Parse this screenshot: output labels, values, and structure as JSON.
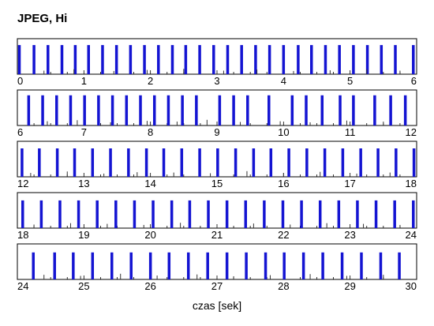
{
  "chart_data": {
    "type": "bar",
    "title": "JPEG, Hi",
    "xlabel": "czas [sek]",
    "ylabel": "",
    "grid": false,
    "legend": "none",
    "xlim": [
      0,
      30
    ],
    "colors": {
      "frame": "#1414d2",
      "minor": "#333333",
      "axis": "#000000"
    },
    "series": [
      {
        "name": "",
        "kind": "frame",
        "x": [
          0.03,
          0.25,
          0.46,
          0.67,
          0.87,
          1.07,
          1.28,
          1.49,
          1.7,
          1.91,
          2.12,
          2.33,
          2.53,
          2.74,
          2.95,
          3.16,
          3.37,
          3.58,
          3.79,
          4.0,
          4.22,
          4.42,
          4.63,
          4.84,
          5.05,
          5.26,
          5.47,
          5.68,
          5.95,
          6.17,
          6.38,
          6.59,
          6.8,
          7.01,
          7.22,
          7.43,
          7.64,
          7.85,
          8.06,
          8.27,
          8.48,
          8.69,
          9.04,
          9.25,
          9.46,
          9.78,
          10.13,
          10.34,
          10.58,
          10.85,
          11.05,
          11.37,
          11.61,
          11.83,
          12.07,
          12.33,
          12.6,
          12.86,
          13.13,
          13.4,
          13.67,
          13.94,
          14.2,
          14.47,
          14.74,
          15.01,
          15.28,
          15.55,
          15.81,
          16.08,
          16.35,
          16.62,
          16.89,
          17.16,
          17.42,
          17.69,
          17.96,
          18.08,
          18.36,
          18.64,
          18.92,
          19.2,
          19.48,
          19.76,
          20.04,
          20.32,
          20.59,
          20.87,
          21.15,
          21.43,
          21.71,
          21.99,
          22.27,
          22.55,
          22.83,
          23.11,
          23.39,
          23.67,
          23.95,
          24.24,
          24.56,
          24.84,
          25.13,
          25.42,
          25.71,
          26.0,
          26.28,
          26.57,
          26.86,
          27.15,
          27.44,
          27.73,
          28.01,
          28.3,
          28.59,
          28.88,
          29.17,
          29.46,
          29.74
        ],
        "values": [
          0.82,
          0.82,
          0.82,
          0.82,
          0.82,
          0.82,
          0.82,
          0.82,
          0.82,
          0.82,
          0.82,
          0.82,
          0.82,
          0.82,
          0.82,
          0.82,
          0.82,
          0.82,
          0.82,
          0.82,
          0.82,
          0.82,
          0.82,
          0.82,
          0.82,
          0.82,
          0.82,
          0.82,
          0.82,
          0.85,
          0.85,
          0.85,
          0.85,
          0.85,
          0.85,
          0.85,
          0.85,
          0.85,
          0.85,
          0.85,
          0.85,
          0.85,
          0.85,
          0.85,
          0.85,
          0.85,
          0.85,
          0.85,
          0.85,
          0.85,
          0.85,
          0.85,
          0.85,
          0.85,
          0.8,
          0.8,
          0.8,
          0.8,
          0.8,
          0.8,
          0.8,
          0.8,
          0.8,
          0.8,
          0.8,
          0.8,
          0.8,
          0.8,
          0.8,
          0.8,
          0.8,
          0.8,
          0.8,
          0.8,
          0.8,
          0.8,
          0.8,
          0.78,
          0.78,
          0.78,
          0.78,
          0.78,
          0.78,
          0.78,
          0.78,
          0.78,
          0.78,
          0.78,
          0.78,
          0.78,
          0.78,
          0.78,
          0.78,
          0.78,
          0.78,
          0.78,
          0.78,
          0.78,
          0.78,
          0.76,
          0.76,
          0.76,
          0.76,
          0.76,
          0.76,
          0.76,
          0.76,
          0.76,
          0.76,
          0.76,
          0.76,
          0.76,
          0.76,
          0.76,
          0.76,
          0.76,
          0.76,
          0.76,
          0.76
        ]
      },
      {
        "name": "",
        "kind": "minor",
        "x": [
          0.4,
          0.85,
          1.45,
          1.95,
          2.5,
          3.1,
          3.6,
          4.15,
          4.7,
          5.25,
          5.75,
          6.45,
          6.9,
          7.4,
          7.95,
          8.4,
          8.85,
          9.35,
          9.95,
          10.4,
          10.95,
          11.5,
          12.2,
          12.75,
          13.3,
          13.8,
          14.35,
          14.9,
          15.45,
          16.0,
          16.55,
          17.1,
          17.6,
          18.25,
          18.8,
          19.35,
          19.9,
          20.45,
          21.0,
          21.55,
          22.1,
          22.65,
          23.2,
          23.75,
          24.4,
          24.95,
          25.55,
          26.1,
          26.7,
          27.25,
          27.8,
          28.4,
          28.95,
          29.5
        ],
        "values": [
          0.1,
          0.14,
          0.09,
          0.12,
          0.15,
          0.1,
          0.13,
          0.09,
          0.11,
          0.14,
          0.1,
          0.12,
          0.15,
          0.09,
          0.13,
          0.11,
          0.16,
          0.1,
          0.12,
          0.09,
          0.14,
          0.11,
          0.11,
          0.15,
          0.09,
          0.13,
          0.12,
          0.1,
          0.16,
          0.11,
          0.14,
          0.09,
          0.12,
          0.1,
          0.14,
          0.12,
          0.09,
          0.15,
          0.11,
          0.13,
          0.1,
          0.14,
          0.12,
          0.09,
          0.13,
          0.1,
          0.16,
          0.11,
          0.14,
          0.09,
          0.12,
          0.15,
          0.1,
          0.13
        ]
      }
    ],
    "rows": [
      {
        "range": [
          0,
          6
        ],
        "tick_labels": [
          "0",
          "1",
          "2",
          "3",
          "4",
          "5",
          "6"
        ]
      },
      {
        "range": [
          6,
          12
        ],
        "tick_labels": [
          "6",
          "7",
          "8",
          "9",
          "10",
          "11",
          "12"
        ]
      },
      {
        "range": [
          12,
          18
        ],
        "tick_labels": [
          "12",
          "13",
          "14",
          "15",
          "16",
          "17",
          "18"
        ]
      },
      {
        "range": [
          18,
          24
        ],
        "tick_labels": [
          "18",
          "19",
          "20",
          "21",
          "22",
          "23",
          "24"
        ]
      },
      {
        "range": [
          24,
          30
        ],
        "tick_labels": [
          "24",
          "25",
          "26",
          "27",
          "28",
          "29",
          "30"
        ]
      }
    ]
  }
}
